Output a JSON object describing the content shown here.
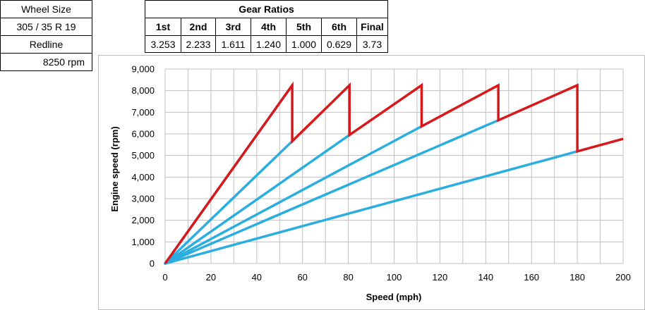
{
  "left_panel": {
    "wheel_size_label": "Wheel Size",
    "wheel_size_value": "305  /  35  R  19",
    "redline_label": "Redline",
    "redline_value": "8250 rpm"
  },
  "gear_table": {
    "title": "Gear Ratios",
    "headers": [
      "1st",
      "2nd",
      "3rd",
      "4th",
      "5th",
      "6th",
      "Final"
    ],
    "values": [
      "3.253",
      "2.233",
      "1.611",
      "1.240",
      "1.000",
      "0.629",
      "3.73"
    ]
  },
  "colors": {
    "gear_lines": "#2aaedf",
    "shift_path": "#d7191c",
    "grid": "#c0c0c0"
  },
  "chart_data": {
    "type": "line",
    "xlabel": "Speed (mph)",
    "ylabel": "Engine speed (rpm)",
    "xlim": [
      0,
      200
    ],
    "ylim": [
      0,
      9000
    ],
    "xticks": [
      0,
      20,
      40,
      60,
      80,
      100,
      120,
      140,
      160,
      180,
      200
    ],
    "yticks": [
      0,
      1000,
      2000,
      3000,
      4000,
      5000,
      6000,
      7000,
      8000,
      9000
    ],
    "ytick_labels": [
      "0",
      "1,000",
      "2,000",
      "3,000",
      "4,000",
      "5,000",
      "6,000",
      "7,000",
      "8,000",
      "9,000"
    ],
    "grid": true,
    "gear_lines": [
      {
        "x": [
          0,
          55.5
        ],
        "y": [
          0,
          8250
        ]
      },
      {
        "x": [
          0,
          55.5
        ],
        "y": [
          0,
          5660
        ]
      },
      {
        "x": [
          0,
          80.5
        ],
        "y": [
          0,
          5950
        ]
      },
      {
        "x": [
          0,
          112
        ],
        "y": [
          0,
          6350
        ]
      },
      {
        "x": [
          0,
          145.5
        ],
        "y": [
          0,
          6630
        ]
      },
      {
        "x": [
          0,
          180
        ],
        "y": [
          0,
          5190
        ]
      }
    ],
    "shift_path": {
      "x": [
        0,
        55.5,
        55.5,
        80.5,
        80.5,
        112,
        112,
        145.5,
        145.5,
        180,
        180,
        200
      ],
      "y": [
        0,
        8250,
        5660,
        8250,
        5950,
        8250,
        6350,
        8250,
        6630,
        8250,
        5190,
        5770
      ]
    }
  }
}
